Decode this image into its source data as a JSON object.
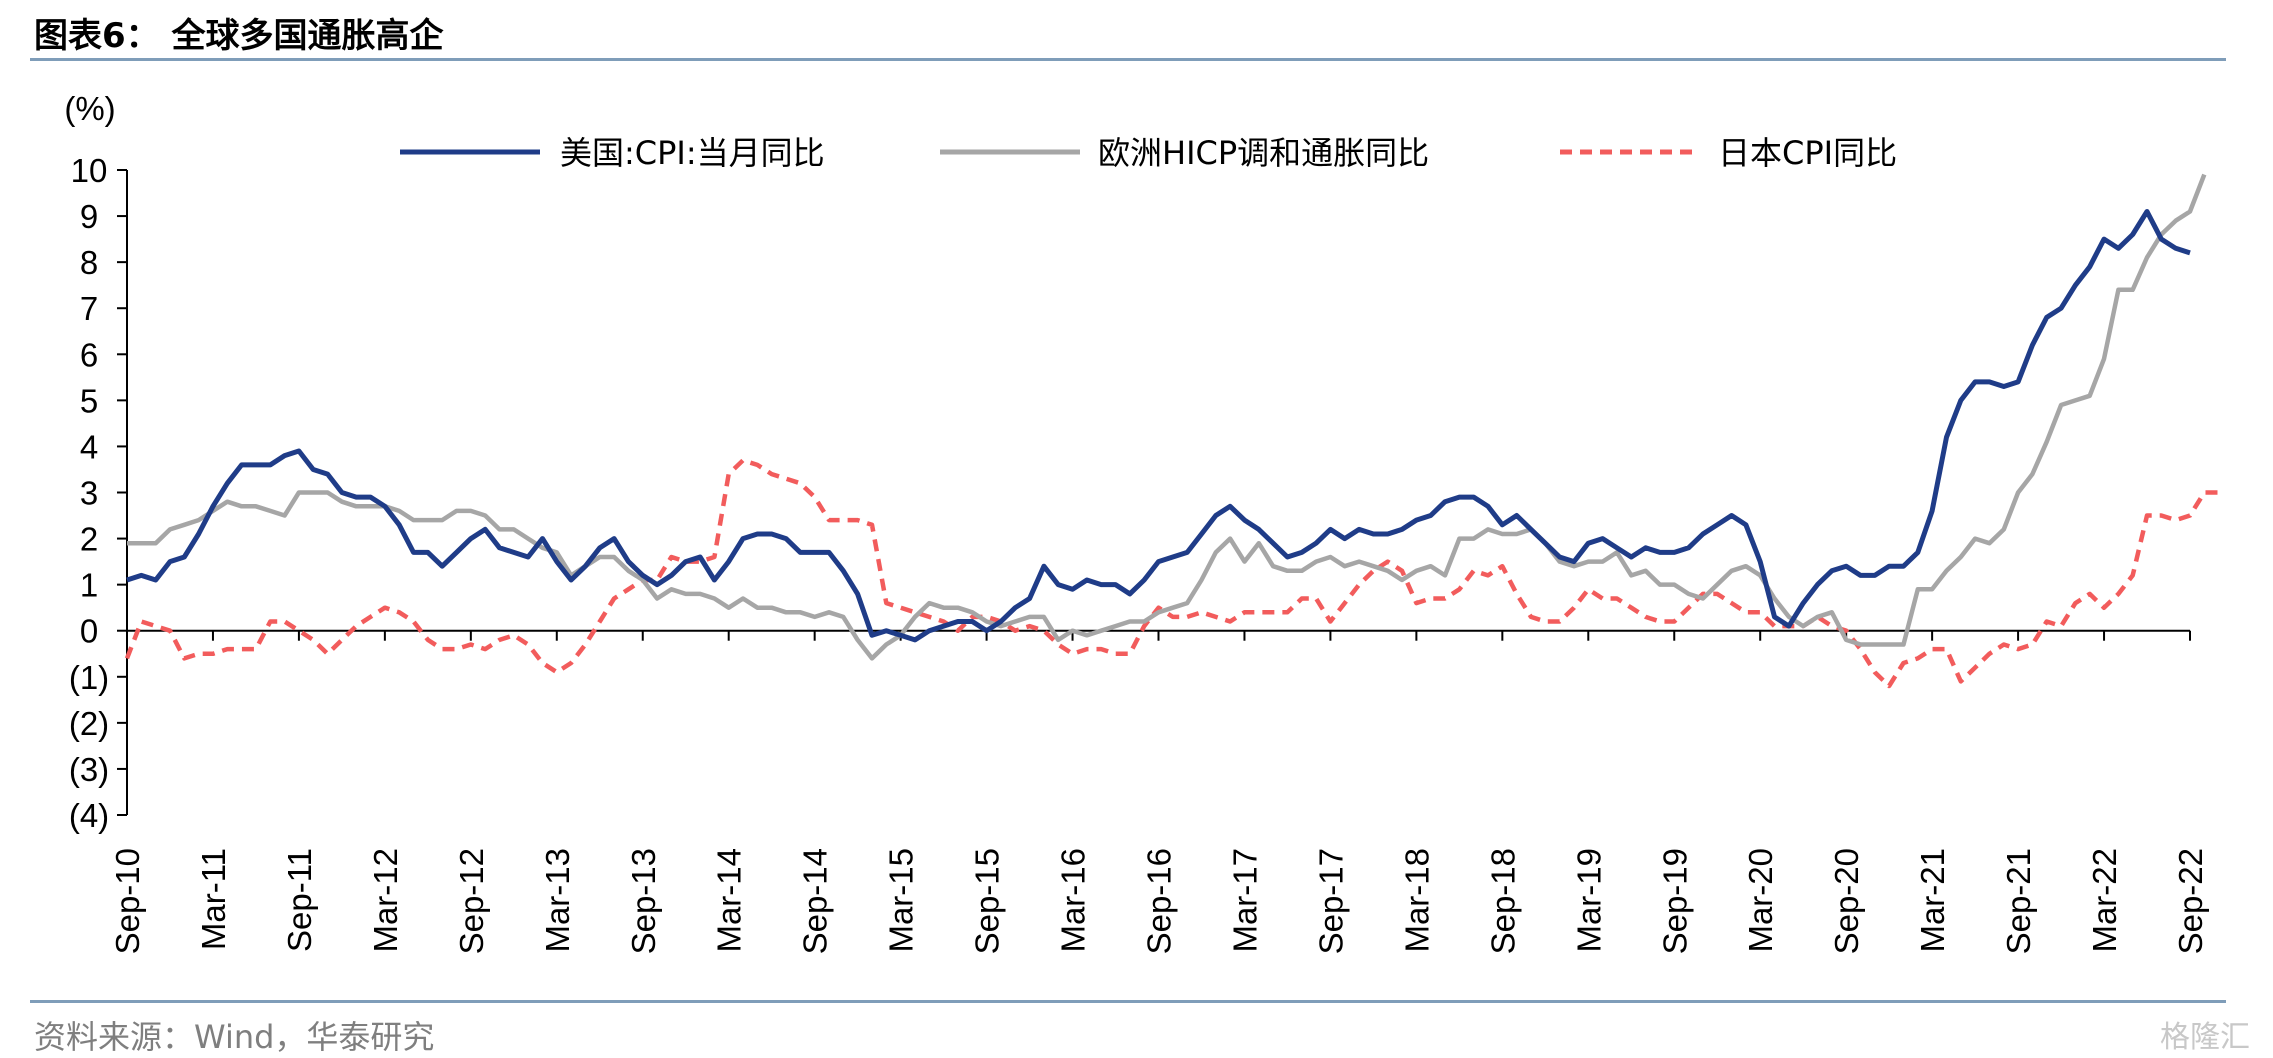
{
  "header": {
    "title": "图表6：  全球多国通胀高企"
  },
  "footer": {
    "source": "资料来源：Wind，华泰研究",
    "watermark": "格隆汇"
  },
  "chart_data": {
    "type": "line",
    "title": "图表6：  全球多国通胀高企",
    "ylabel": "(%)",
    "ylim": [
      -4,
      10
    ],
    "yticks": [
      10,
      9,
      8,
      7,
      6,
      5,
      4,
      3,
      2,
      1,
      0,
      -1,
      -2,
      -3,
      -4
    ],
    "ytick_labels": [
      "10",
      "9",
      "8",
      "7",
      "6",
      "5",
      "4",
      "3",
      "2",
      "1",
      "0",
      "(1)",
      "(2)",
      "(3)",
      "(4)"
    ],
    "x_tick_labels": [
      "Sep-10",
      "Mar-11",
      "Sep-11",
      "Mar-12",
      "Sep-12",
      "Mar-13",
      "Sep-13",
      "Mar-14",
      "Sep-14",
      "Mar-15",
      "Sep-15",
      "Mar-16",
      "Sep-16",
      "Mar-17",
      "Sep-17",
      "Mar-18",
      "Sep-18",
      "Mar-19",
      "Sep-19",
      "Mar-20",
      "Sep-20",
      "Mar-21",
      "Sep-21",
      "Mar-22",
      "Sep-22"
    ],
    "x_start": "2010-09",
    "grid": false,
    "legend_position": "top",
    "series": [
      {
        "name": "美国:CPI:当月同比",
        "color": "#1f3c88",
        "style": "solid",
        "values": [
          1.1,
          1.2,
          1.1,
          1.5,
          1.6,
          2.1,
          2.7,
          3.2,
          3.6,
          3.6,
          3.6,
          3.8,
          3.9,
          3.5,
          3.4,
          3.0,
          2.9,
          2.9,
          2.7,
          2.3,
          1.7,
          1.7,
          1.4,
          1.7,
          2.0,
          2.2,
          1.8,
          1.7,
          1.6,
          2.0,
          1.5,
          1.1,
          1.4,
          1.8,
          2.0,
          1.5,
          1.2,
          1.0,
          1.2,
          1.5,
          1.6,
          1.1,
          1.5,
          2.0,
          2.1,
          2.1,
          2.0,
          1.7,
          1.7,
          1.7,
          1.3,
          0.8,
          -0.1,
          0.0,
          -0.1,
          -0.2,
          0.0,
          0.1,
          0.2,
          0.2,
          0.0,
          0.2,
          0.5,
          0.7,
          1.4,
          1.0,
          0.9,
          1.1,
          1.0,
          1.0,
          0.8,
          1.1,
          1.5,
          1.6,
          1.7,
          2.1,
          2.5,
          2.7,
          2.4,
          2.2,
          1.9,
          1.6,
          1.7,
          1.9,
          2.2,
          2.0,
          2.2,
          2.1,
          2.1,
          2.2,
          2.4,
          2.5,
          2.8,
          2.9,
          2.9,
          2.7,
          2.3,
          2.5,
          2.2,
          1.9,
          1.6,
          1.5,
          1.9,
          2.0,
          1.8,
          1.6,
          1.8,
          1.7,
          1.7,
          1.8,
          2.1,
          2.3,
          2.5,
          2.3,
          1.5,
          0.3,
          0.1,
          0.6,
          1.0,
          1.3,
          1.4,
          1.2,
          1.2,
          1.4,
          1.4,
          1.7,
          2.6,
          4.2,
          5.0,
          5.4,
          5.4,
          5.3,
          5.4,
          6.2,
          6.8,
          7.0,
          7.5,
          7.9,
          8.5,
          8.3,
          8.6,
          9.1,
          8.5,
          8.3,
          8.2
        ]
      },
      {
        "name": "欧洲HICP调和通胀同比",
        "color": "#a6a6a6",
        "style": "solid",
        "values": [
          1.9,
          1.9,
          1.9,
          2.2,
          2.3,
          2.4,
          2.6,
          2.8,
          2.7,
          2.7,
          2.6,
          2.5,
          3.0,
          3.0,
          3.0,
          2.8,
          2.7,
          2.7,
          2.7,
          2.6,
          2.4,
          2.4,
          2.4,
          2.6,
          2.6,
          2.5,
          2.2,
          2.2,
          2.0,
          1.8,
          1.7,
          1.2,
          1.4,
          1.6,
          1.6,
          1.3,
          1.1,
          0.7,
          0.9,
          0.8,
          0.8,
          0.7,
          0.5,
          0.7,
          0.5,
          0.5,
          0.4,
          0.4,
          0.3,
          0.4,
          0.3,
          -0.2,
          -0.6,
          -0.3,
          -0.1,
          0.3,
          0.6,
          0.5,
          0.5,
          0.4,
          0.2,
          0.1,
          0.2,
          0.3,
          0.3,
          -0.2,
          0.0,
          -0.1,
          0.0,
          0.1,
          0.2,
          0.2,
          0.4,
          0.5,
          0.6,
          1.1,
          1.7,
          2.0,
          1.5,
          1.9,
          1.4,
          1.3,
          1.3,
          1.5,
          1.6,
          1.4,
          1.5,
          1.4,
          1.3,
          1.1,
          1.3,
          1.4,
          1.2,
          2.0,
          2.0,
          2.2,
          2.1,
          2.1,
          2.2,
          1.9,
          1.5,
          1.4,
          1.5,
          1.5,
          1.7,
          1.2,
          1.3,
          1.0,
          1.0,
          0.8,
          0.7,
          1.0,
          1.3,
          1.4,
          1.2,
          0.7,
          0.3,
          0.1,
          0.3,
          0.4,
          -0.2,
          -0.3,
          -0.3,
          -0.3,
          -0.3,
          0.9,
          0.9,
          1.3,
          1.6,
          2.0,
          1.9,
          2.2,
          3.0,
          3.4,
          4.1,
          4.9,
          5.0,
          5.1,
          5.9,
          7.4,
          7.4,
          8.1,
          8.6,
          8.9,
          9.1,
          9.9
        ]
      },
      {
        "name": "日本CPI同比",
        "color": "#f25c5c",
        "style": "dashed",
        "values": [
          -0.6,
          0.2,
          0.1,
          0.0,
          -0.6,
          -0.5,
          -0.5,
          -0.4,
          -0.4,
          -0.4,
          0.2,
          0.2,
          0.0,
          -0.2,
          -0.5,
          -0.2,
          0.1,
          0.3,
          0.5,
          0.4,
          0.2,
          -0.2,
          -0.4,
          -0.4,
          -0.3,
          -0.4,
          -0.2,
          -0.1,
          -0.3,
          -0.7,
          -0.9,
          -0.7,
          -0.3,
          0.2,
          0.7,
          0.9,
          1.1,
          1.1,
          1.6,
          1.5,
          1.5,
          1.6,
          3.4,
          3.7,
          3.6,
          3.4,
          3.3,
          3.2,
          2.9,
          2.4,
          2.4,
          2.4,
          2.3,
          0.6,
          0.5,
          0.4,
          0.3,
          0.2,
          0.0,
          0.3,
          0.3,
          0.2,
          0.0,
          0.1,
          0.0,
          -0.3,
          -0.5,
          -0.4,
          -0.4,
          -0.5,
          -0.5,
          0.1,
          0.5,
          0.3,
          0.3,
          0.4,
          0.3,
          0.2,
          0.4,
          0.4,
          0.4,
          0.4,
          0.7,
          0.7,
          0.2,
          0.6,
          1.0,
          1.3,
          1.5,
          1.3,
          0.6,
          0.7,
          0.7,
          0.9,
          1.3,
          1.2,
          1.4,
          0.8,
          0.3,
          0.2,
          0.2,
          0.5,
          0.9,
          0.7,
          0.7,
          0.5,
          0.3,
          0.2,
          0.2,
          0.5,
          0.8,
          0.8,
          0.6,
          0.4,
          0.4,
          0.1,
          0.1,
          0.1,
          0.3,
          0.1,
          0.0,
          -0.4,
          -0.9,
          -1.2,
          -0.7,
          -0.6,
          -0.4,
          -0.4,
          -1.1,
          -0.8,
          -0.5,
          -0.3,
          -0.4,
          -0.3,
          0.2,
          0.1,
          0.6,
          0.8,
          0.5,
          0.8,
          1.2,
          2.5,
          2.5,
          2.4,
          2.5,
          3.0,
          3.0
        ]
      }
    ]
  }
}
